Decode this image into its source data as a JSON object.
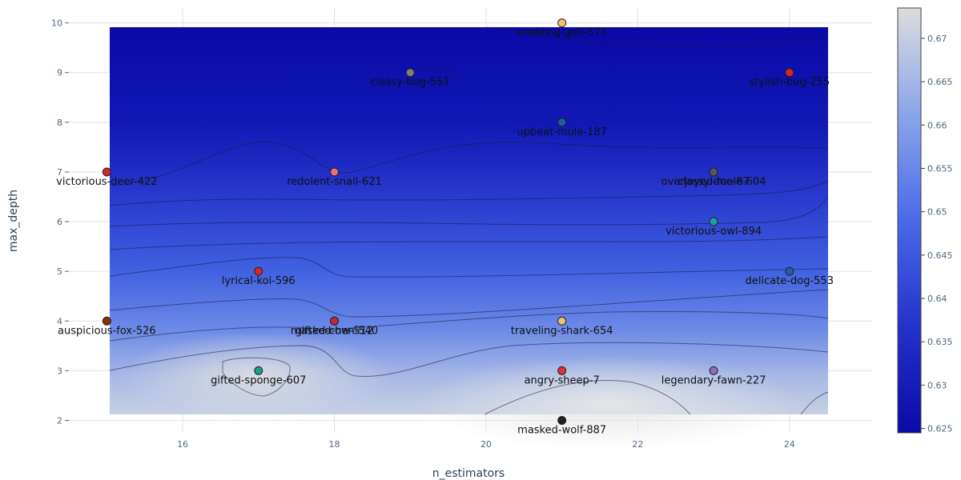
{
  "chart_data": {
    "type": "contour-scatter",
    "xlabel": "n_estimators",
    "ylabel": "max_depth",
    "xlim": [
      14.5,
      25.1
    ],
    "ylim": [
      1.75,
      10.3
    ],
    "x_ticks": [
      16,
      18,
      20,
      22,
      24
    ],
    "y_ticks": [
      2,
      3,
      4,
      5,
      6,
      7,
      8,
      9,
      10
    ],
    "colorbar": {
      "range": [
        0.6245,
        0.6735
      ],
      "ticks": [
        0.625,
        0.63,
        0.635,
        0.64,
        0.645,
        0.65,
        0.655,
        0.66,
        0.665,
        0.67
      ],
      "tick_labels": [
        "0.625",
        "0.63",
        "0.635",
        "0.64",
        "0.645",
        "0.65",
        "0.655",
        "0.66",
        "0.665",
        "0.67"
      ],
      "colors": [
        "#0a0aa8",
        "#2432cc",
        "#4a6ae6",
        "#8aa6ea",
        "#dcdcdc"
      ]
    },
    "points": [
      {
        "label": "crawling-gull-575",
        "x": 21,
        "y": 10,
        "color": "#f5c26b"
      },
      {
        "label": "classy-bug-551",
        "x": 19,
        "y": 9,
        "color": "#7f7f7f"
      },
      {
        "label": "stylish-bug-255",
        "x": 24,
        "y": 9,
        "color": "#d62728"
      },
      {
        "label": "upbeat-mule-187",
        "x": 21,
        "y": 8,
        "color": "#1f5fa6"
      },
      {
        "label": "victorious-deer-422",
        "x": 15,
        "y": 7,
        "color": "#d62728"
      },
      {
        "label": "redolent-snail-621",
        "x": 18,
        "y": 7,
        "color": "#f06e7a"
      },
      {
        "label": "overjoyed-mole-604",
        "x": 23,
        "y": 7,
        "color": "#555566"
      },
      {
        "label": "classy-doe-87",
        "x": 23,
        "y": 7,
        "color": "#555566"
      },
      {
        "label": "victorious-owl-894",
        "x": 23,
        "y": 6,
        "color": "#17a2a8"
      },
      {
        "label": "lyrical-koi-596",
        "x": 17,
        "y": 5,
        "color": "#d62728"
      },
      {
        "label": "delicate-dog-553",
        "x": 24,
        "y": 5,
        "color": "#1f5fa6"
      },
      {
        "label": "auspicious-fox-526",
        "x": 15,
        "y": 4,
        "color": "#8c2d04"
      },
      {
        "label": "masked-hen-540",
        "x": 18,
        "y": 4,
        "color": "#e45756"
      },
      {
        "label": "gifted-cow-512",
        "x": 18,
        "y": 4,
        "color": "#c0283b"
      },
      {
        "label": "traveling-shark-654",
        "x": 21,
        "y": 4,
        "color": "#f5c26b"
      },
      {
        "label": "gifted-sponge-607",
        "x": 17,
        "y": 3,
        "color": "#17a085"
      },
      {
        "label": "angry-sheep-7",
        "x": 21,
        "y": 3,
        "color": "#e0303e"
      },
      {
        "label": "legendary-fawn-227",
        "x": 23,
        "y": 3,
        "color": "#9467bd"
      },
      {
        "label": "masked-wolf-887",
        "x": 21,
        "y": 2,
        "color": "#222222"
      }
    ]
  }
}
